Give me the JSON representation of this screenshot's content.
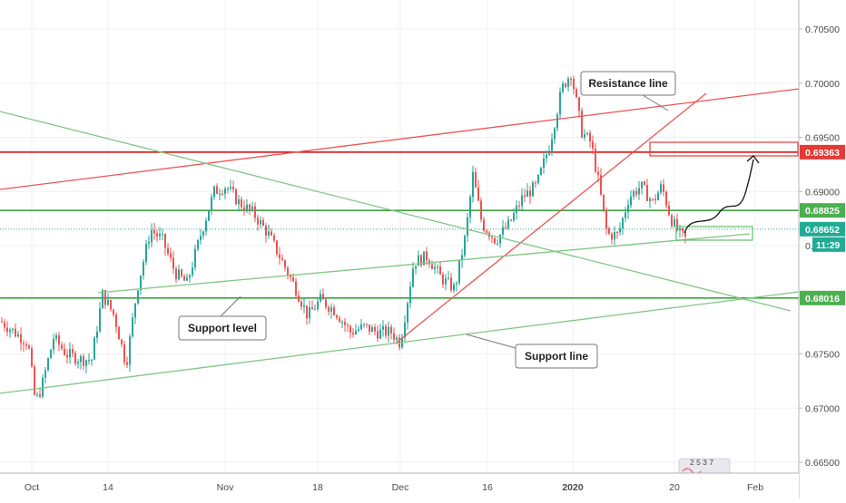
{
  "chart_data": {
    "type": "candlestick",
    "x_ticks": [
      "Oct",
      "14",
      "Nov",
      "18",
      "Dec",
      "16",
      "2020",
      "20",
      "Feb"
    ],
    "x_ticks_bold": [
      "2020"
    ],
    "y_ticks": [
      "0.70500",
      "0.70000",
      "0.69500",
      "0.69000",
      "0.67500",
      "0.67000",
      "0.66500"
    ],
    "ylim": [
      0.6645,
      0.7075
    ],
    "price_labels": [
      {
        "text": "0.69363",
        "value": 0.69363,
        "color": "#e53935",
        "text_color": "#ffffff"
      },
      {
        "text": "0.68825",
        "value": 0.68825,
        "color": "#4caf50",
        "text_color": "#ffffff"
      },
      {
        "text": "0.68652",
        "value": 0.68652,
        "color": "#22ab94",
        "text_color": "#ffffff"
      },
      {
        "text": "0.68016",
        "value": 0.68016,
        "color": "#4caf50",
        "text_color": "#ffffff"
      }
    ],
    "countdown": {
      "text": "11:29",
      "color": "#22ab94"
    },
    "partial_tick": "0.",
    "horizontal_levels": [
      {
        "value": 0.69363,
        "color": "#d50000"
      },
      {
        "value": 0.68825,
        "color": "#43a047"
      },
      {
        "value": 0.68016,
        "color": "#43a047"
      }
    ],
    "current_price": 0.68652,
    "annotations": [
      "Resistance line",
      "Support level",
      "Support line"
    ],
    "logo_digits": "2 5 3 7",
    "colors": {
      "up": "#26a69a",
      "down": "#ef5350",
      "resistance": "#e53935",
      "support": "#66bb6a"
    }
  }
}
